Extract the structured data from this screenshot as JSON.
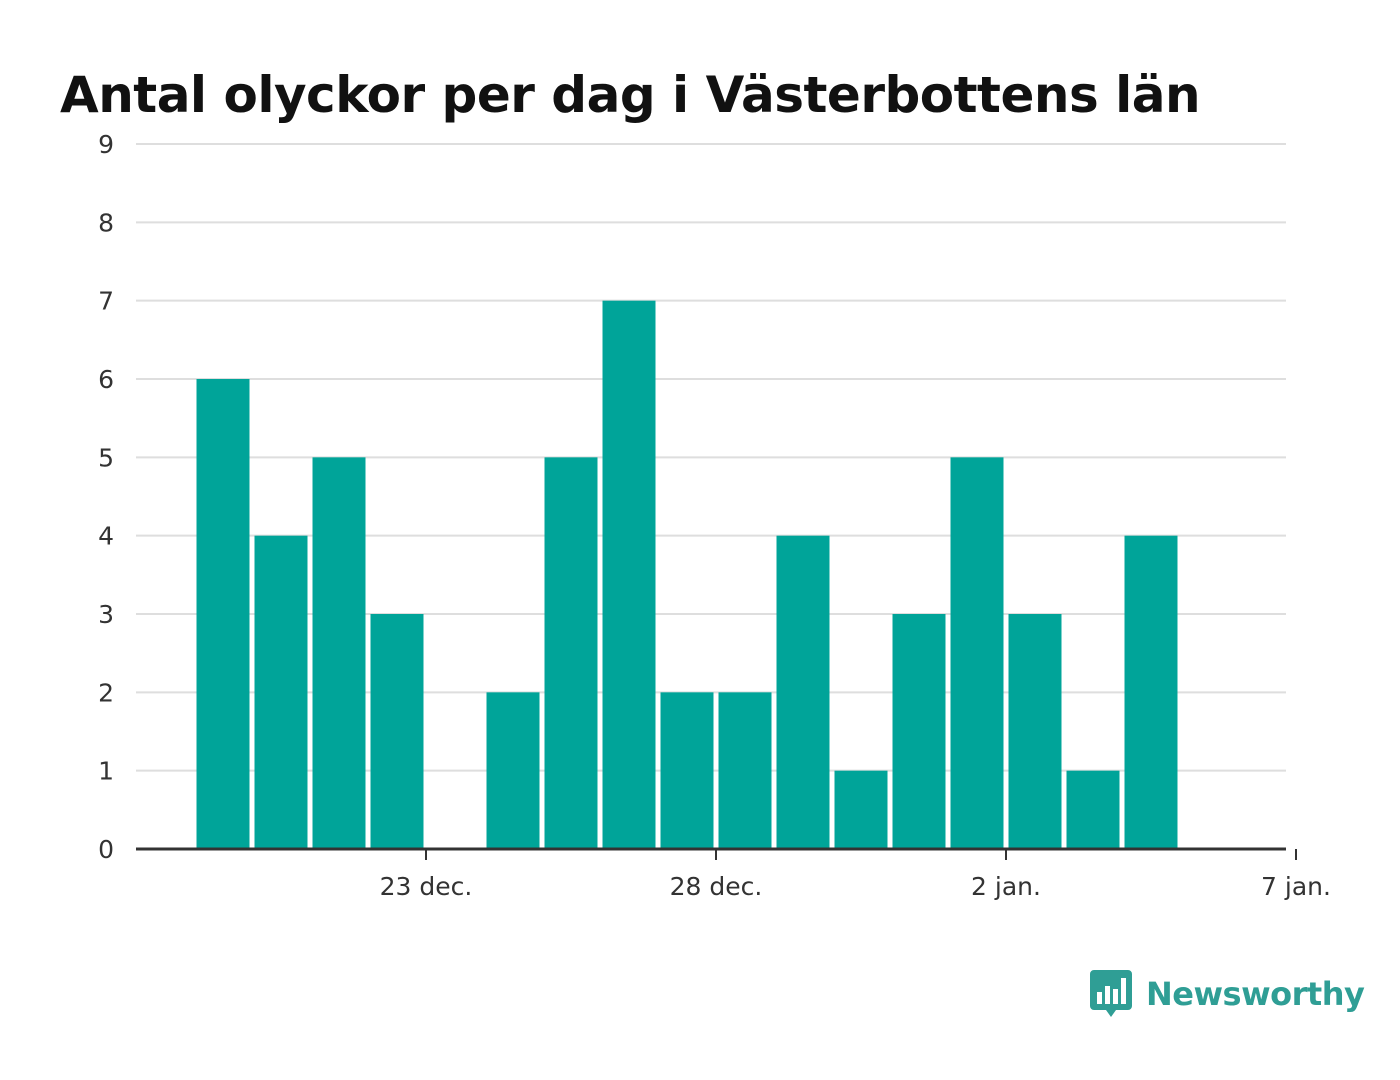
{
  "chart_data": {
    "type": "bar",
    "title": "Antal olyckor per dag i Västerbottens län",
    "xlabel": "",
    "ylabel": "",
    "ylim": [
      0,
      9
    ],
    "yticks": [
      0,
      1,
      2,
      3,
      4,
      5,
      6,
      7,
      8,
      9
    ],
    "x_range": [
      "2023-12-18",
      "2024-01-07"
    ],
    "xticks": [
      {
        "date": "2023-12-23",
        "label": "23 dec."
      },
      {
        "date": "2023-12-28",
        "label": "28 dec."
      },
      {
        "date": "2024-01-02",
        "label": "2 jan."
      },
      {
        "date": "2024-01-07",
        "label": "7 jan."
      }
    ],
    "categories": [
      "2023-12-19",
      "2023-12-20",
      "2023-12-21",
      "2023-12-22",
      "2023-12-23",
      "2023-12-24",
      "2023-12-25",
      "2023-12-26",
      "2023-12-27",
      "2023-12-28",
      "2023-12-29",
      "2023-12-30",
      "2023-12-31",
      "2024-01-01",
      "2024-01-02",
      "2024-01-03",
      "2024-01-04",
      "2024-01-05"
    ],
    "values": [
      6,
      4,
      5,
      3,
      0,
      2,
      5,
      7,
      2,
      2,
      4,
      1,
      3,
      5,
      3,
      1,
      4,
      0
    ],
    "bar_color": "#00a499",
    "grid": true,
    "legend": "none"
  },
  "brand": {
    "name": "Newsworthy",
    "icon": "newsworthy-logo-icon",
    "color": "#2f9e95"
  }
}
